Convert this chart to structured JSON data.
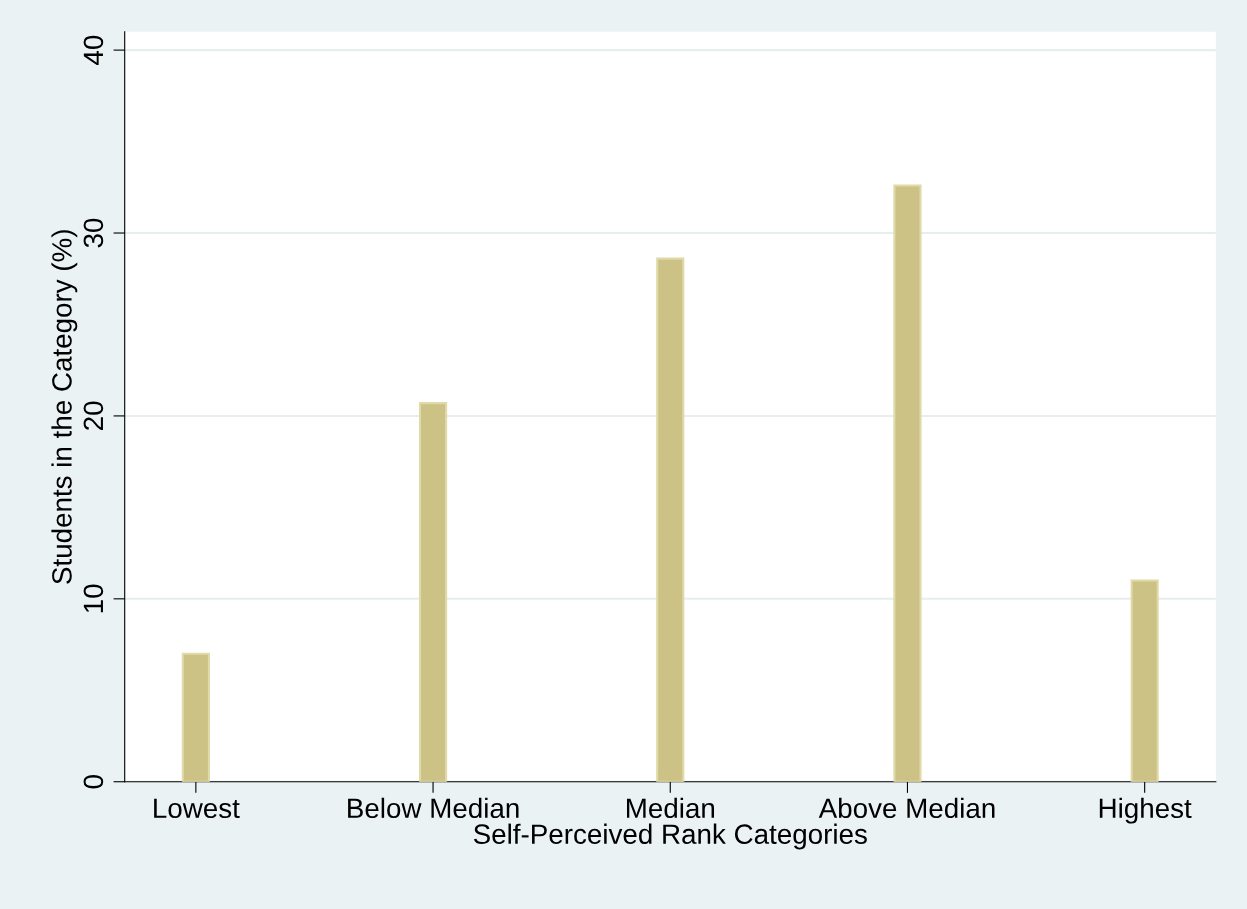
{
  "chart_data": {
    "type": "bar",
    "xlabel": "Self-Perceived Rank Categories",
    "ylabel": "Students in the Category (%)",
    "categories": [
      "Lowest",
      "Below Median",
      "Median",
      "Above Median",
      "Highest"
    ],
    "values": [
      7.0,
      20.7,
      28.6,
      32.6,
      11.0
    ],
    "color": "#cdc285",
    "ylim": [
      0,
      41
    ],
    "yticks": [
      0,
      10,
      20,
      30,
      40
    ],
    "grid": "y"
  }
}
